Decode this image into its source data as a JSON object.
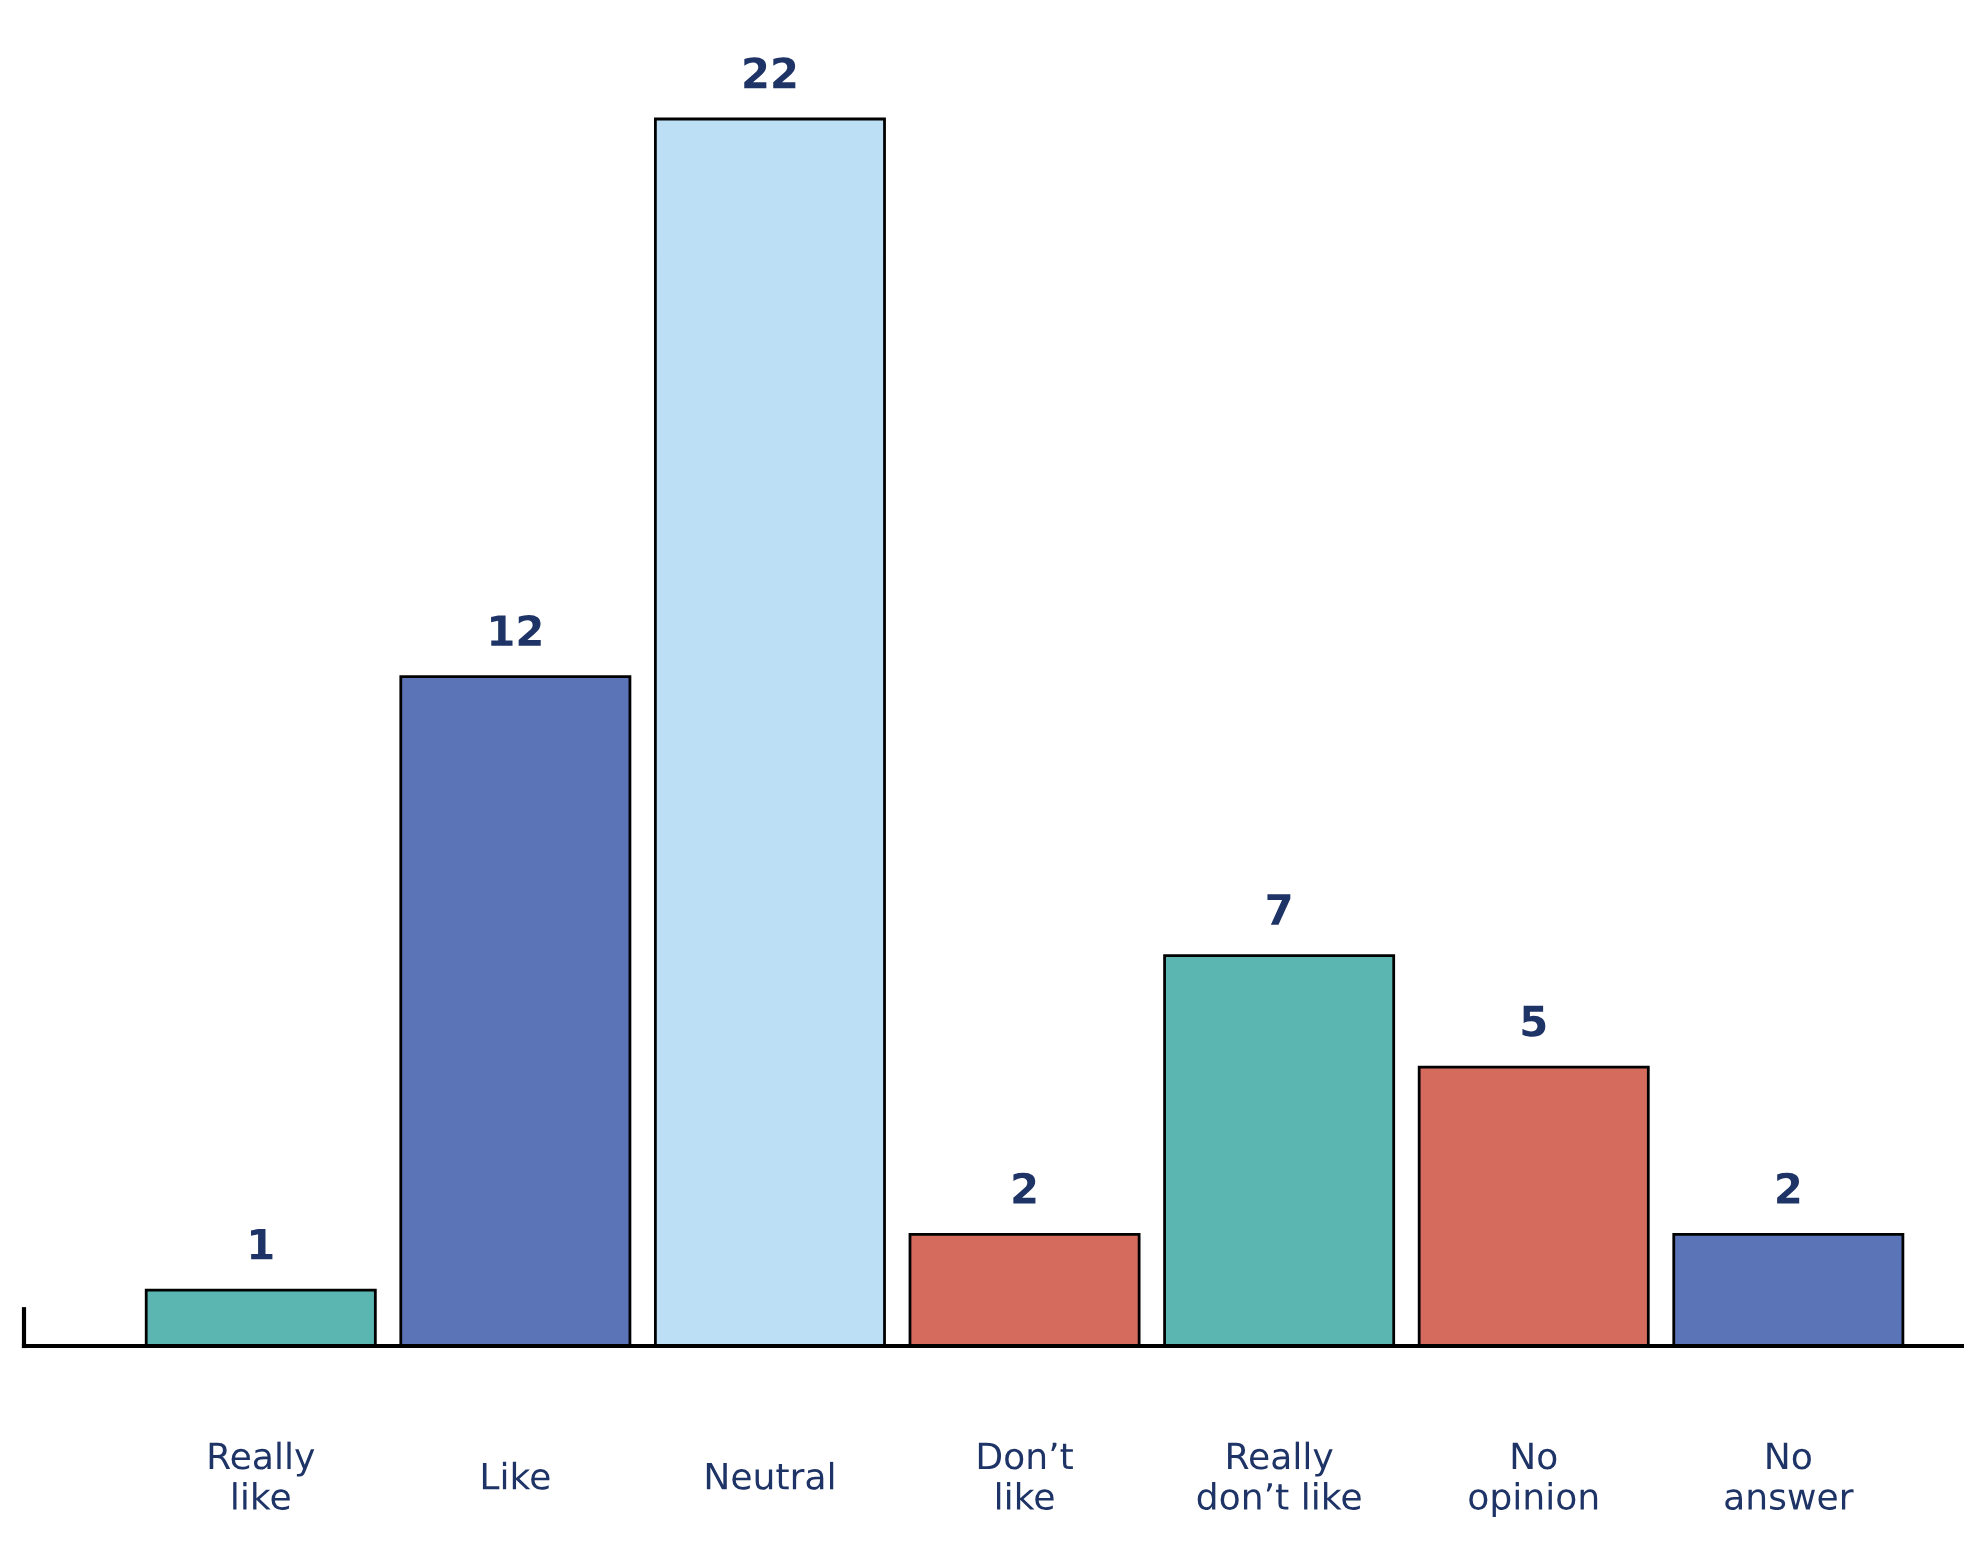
{
  "chart_data": {
    "type": "bar",
    "categories": [
      "Really\nlike",
      "Like",
      "Neutral",
      "Don’t\nlike",
      "Really\ndon’t like",
      "No\nopinion",
      "No\nanswer"
    ],
    "values": [
      1,
      12,
      22,
      2,
      7,
      5,
      2
    ],
    "colors": [
      "#5bb5b0",
      "#5b74b7",
      "#bcdff5",
      "#d56b5c",
      "#5bb5b0",
      "#d56b5c",
      "#5b74b7"
    ],
    "data_labels": true,
    "grid": false,
    "legend": false
  }
}
